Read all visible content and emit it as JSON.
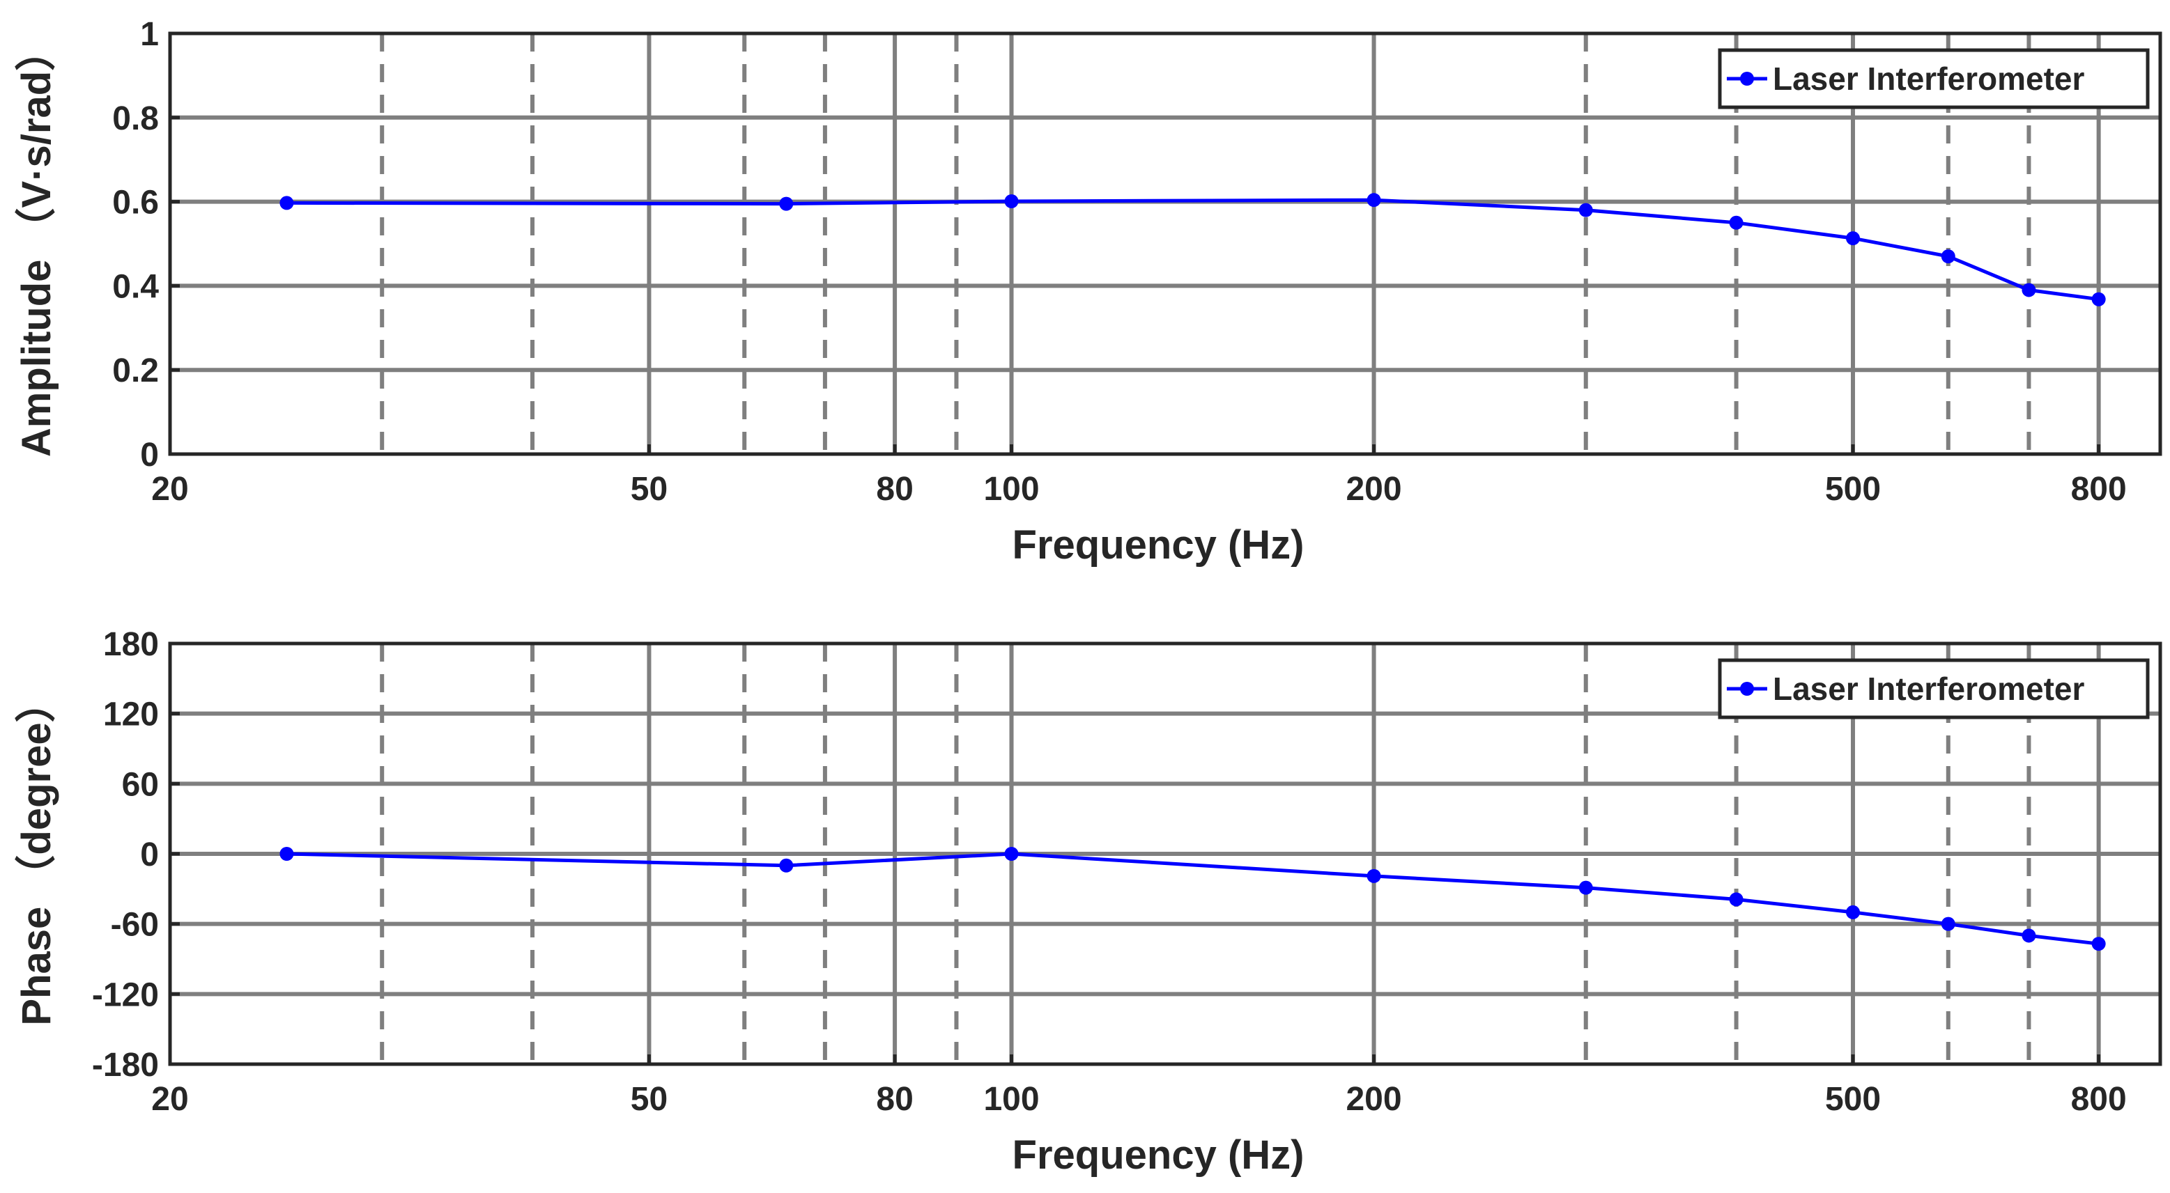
{
  "colors": {
    "series": "#0000ff",
    "grid": "#7f7f7f",
    "axes": "#262626",
    "background": "#ffffff"
  },
  "chart_data": [
    {
      "type": "line",
      "xscale": "log",
      "xlim": [
        20,
        900
      ],
      "ylim": [
        0,
        1
      ],
      "xlabel": "Frequency (Hz)",
      "ylabel": "Amplitude （V·s/rad）",
      "x_ticks": [
        20,
        50,
        80,
        100,
        200,
        500,
        800
      ],
      "x_tick_labels": [
        "20",
        "50",
        "80",
        "100",
        "200",
        "500",
        "800"
      ],
      "y_ticks": [
        0,
        0.2,
        0.4,
        0.6,
        0.8,
        1
      ],
      "y_tick_labels": [
        "0",
        "0.2",
        "0.4",
        "0.6",
        "0.8",
        "1"
      ],
      "grid_solid_x": [
        50,
        80,
        100,
        200,
        500,
        800
      ],
      "grid_dashed_x": [
        30,
        40,
        60,
        70,
        90,
        300,
        400,
        600,
        700
      ],
      "grid": true,
      "legend_position": "top-right",
      "series": [
        {
          "name": "Laser Interferometer",
          "x": [
            25,
            65,
            100,
            200,
            300,
            400,
            500,
            600,
            700,
            800
          ],
          "y": [
            0.597,
            0.595,
            0.601,
            0.604,
            0.58,
            0.55,
            0.513,
            0.47,
            0.39,
            0.368
          ]
        }
      ]
    },
    {
      "type": "line",
      "xscale": "log",
      "xlim": [
        20,
        900
      ],
      "ylim": [
        -180,
        180
      ],
      "xlabel": "Frequency (Hz)",
      "ylabel": "Phase （degree）",
      "x_ticks": [
        20,
        50,
        80,
        100,
        200,
        500,
        800
      ],
      "x_tick_labels": [
        "20",
        "50",
        "80",
        "100",
        "200",
        "500",
        "800"
      ],
      "y_ticks": [
        -180,
        -120,
        -60,
        0,
        60,
        120,
        180
      ],
      "y_tick_labels": [
        "-180",
        "-120",
        "-60",
        "0",
        "60",
        "120",
        "180"
      ],
      "grid_solid_x": [
        50,
        80,
        100,
        200,
        500,
        800
      ],
      "grid_dashed_x": [
        30,
        40,
        60,
        70,
        90,
        300,
        400,
        600,
        700
      ],
      "grid": true,
      "legend_position": "top-right",
      "series": [
        {
          "name": "Laser Interferometer",
          "x": [
            25,
            65,
            100,
            200,
            300,
            400,
            500,
            600,
            700,
            800
          ],
          "y": [
            0,
            -10,
            0,
            -19,
            -29,
            -39,
            -50,
            -60,
            -70,
            -77
          ]
        }
      ]
    }
  ]
}
